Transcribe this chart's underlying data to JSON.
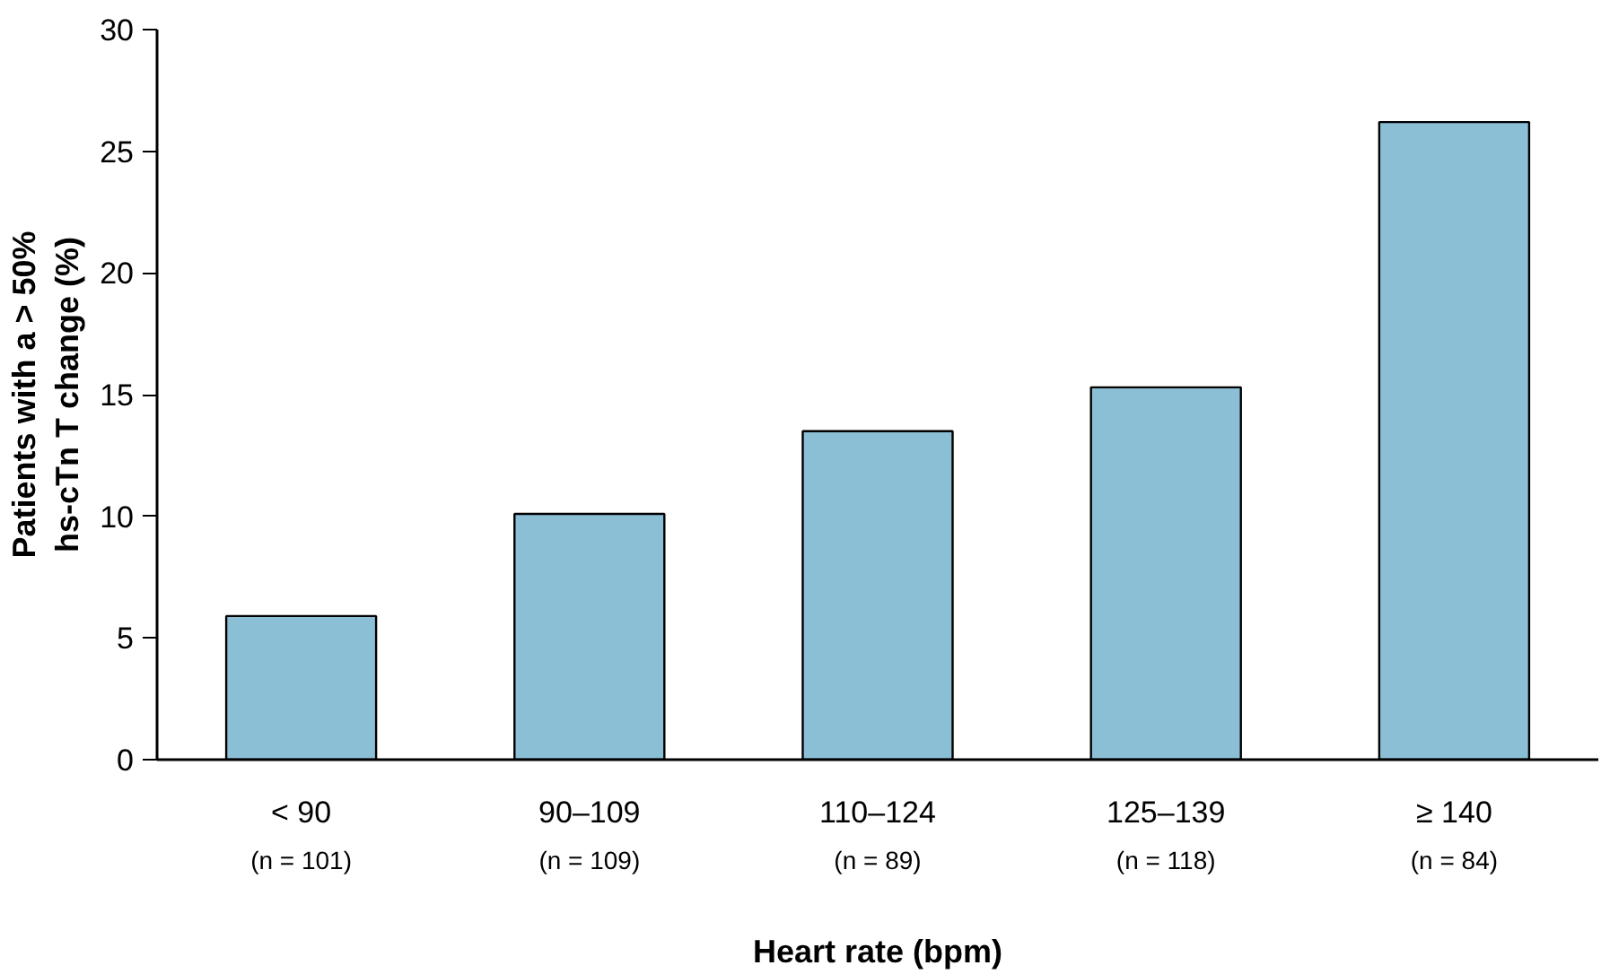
{
  "chart_data": {
    "type": "bar",
    "xlabel": "Heart rate (bpm)",
    "ylabel": "Patients with a > 50%\nhs-cTn T change (%)",
    "categories": [
      "< 90",
      "90–109",
      "110–124",
      "125–139",
      "≥ 140"
    ],
    "values": [
      5.9,
      10.1,
      13.5,
      15.3,
      26.2
    ],
    "color": "#8bbfd6",
    "ylim": [
      0,
      30
    ],
    "yticks": [
      0,
      5,
      10,
      15,
      20,
      25,
      30
    ],
    "grid": false,
    "annotations": [
      "(n = 101)",
      "(n = 109)",
      "(n = 89)",
      "(n = 118)",
      "(n = 84)"
    ]
  }
}
